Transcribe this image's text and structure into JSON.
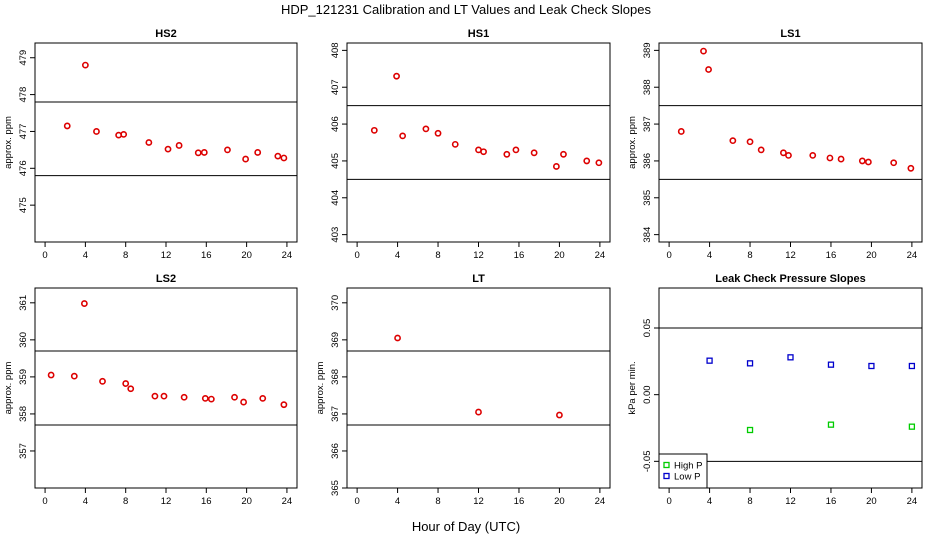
{
  "figure": {
    "title": "HDP_121231  Calibration and LT Values and Leak Check Slopes",
    "xlabel": "Hour of Day (UTC)"
  },
  "chart_data": [
    {
      "type": "scatter",
      "title": "HS2",
      "ylabel": "approx. ppm",
      "xlim": [
        -1,
        25
      ],
      "ylim": [
        474,
        479.4
      ],
      "xticks": [
        0,
        4,
        8,
        12,
        16,
        20,
        24
      ],
      "yticks": [
        475,
        476,
        477,
        478,
        479
      ],
      "hlines": [
        475.8,
        477.8
      ],
      "series": [
        {
          "color": "#dd0000",
          "marker": "circle",
          "points": [
            [
              2.2,
              477.15
            ],
            [
              4.0,
              478.8
            ],
            [
              5.1,
              477.0
            ],
            [
              7.3,
              476.9
            ],
            [
              7.8,
              476.92
            ],
            [
              10.3,
              476.7
            ],
            [
              12.2,
              476.52
            ],
            [
              13.3,
              476.62
            ],
            [
              15.2,
              476.42
            ],
            [
              15.8,
              476.43
            ],
            [
              18.1,
              476.5
            ],
            [
              19.9,
              476.25
            ],
            [
              21.1,
              476.43
            ],
            [
              23.1,
              476.33
            ],
            [
              23.7,
              476.28
            ]
          ]
        }
      ]
    },
    {
      "type": "scatter",
      "title": "HS1",
      "ylabel": "",
      "xlim": [
        -1,
        25
      ],
      "ylim": [
        402.8,
        408.2
      ],
      "xticks": [
        0,
        4,
        8,
        12,
        16,
        20,
        24
      ],
      "yticks": [
        403,
        404,
        405,
        406,
        407,
        408
      ],
      "hlines": [
        404.5,
        406.5
      ],
      "series": [
        {
          "color": "#dd0000",
          "marker": "circle",
          "points": [
            [
              1.7,
              405.83
            ],
            [
              3.9,
              407.3
            ],
            [
              4.5,
              405.68
            ],
            [
              6.8,
              405.87
            ],
            [
              8.0,
              405.75
            ],
            [
              9.7,
              405.45
            ],
            [
              12.0,
              405.3
            ],
            [
              12.5,
              405.25
            ],
            [
              14.8,
              405.18
            ],
            [
              15.7,
              405.3
            ],
            [
              17.5,
              405.22
            ],
            [
              19.7,
              404.85
            ],
            [
              20.4,
              405.18
            ],
            [
              22.7,
              405.0
            ],
            [
              23.9,
              404.95
            ]
          ]
        }
      ]
    },
    {
      "type": "scatter",
      "title": "LS1",
      "ylabel": "approx. ppm",
      "xlim": [
        -1,
        25
      ],
      "ylim": [
        383.8,
        389.2
      ],
      "xticks": [
        0,
        4,
        8,
        12,
        16,
        20,
        24
      ],
      "yticks": [
        384,
        385,
        386,
        387,
        388,
        389
      ],
      "hlines": [
        385.5,
        387.5
      ],
      "series": [
        {
          "color": "#dd0000",
          "marker": "circle",
          "points": [
            [
              1.2,
              386.8
            ],
            [
              3.4,
              388.98
            ],
            [
              3.9,
              388.48
            ],
            [
              6.3,
              386.55
            ],
            [
              8.0,
              386.52
            ],
            [
              9.1,
              386.3
            ],
            [
              11.3,
              386.22
            ],
            [
              11.8,
              386.15
            ],
            [
              14.2,
              386.15
            ],
            [
              15.9,
              386.08
            ],
            [
              17.0,
              386.05
            ],
            [
              19.1,
              386.0
            ],
            [
              19.7,
              385.97
            ],
            [
              22.2,
              385.95
            ],
            [
              23.9,
              385.8
            ]
          ]
        }
      ]
    },
    {
      "type": "scatter",
      "title": "LS2",
      "ylabel": "approx. ppm",
      "xlim": [
        -1,
        25
      ],
      "ylim": [
        356,
        361.4
      ],
      "xticks": [
        0,
        4,
        8,
        12,
        16,
        20,
        24
      ],
      "yticks": [
        357,
        358,
        359,
        360,
        361
      ],
      "hlines": [
        357.7,
        359.7
      ],
      "series": [
        {
          "color": "#dd0000",
          "marker": "circle",
          "points": [
            [
              0.6,
              359.05
            ],
            [
              2.9,
              359.02
            ],
            [
              3.9,
              360.98
            ],
            [
              5.7,
              358.88
            ],
            [
              8.0,
              358.82
            ],
            [
              8.5,
              358.68
            ],
            [
              10.9,
              358.48
            ],
            [
              11.8,
              358.48
            ],
            [
              13.8,
              358.45
            ],
            [
              15.9,
              358.42
            ],
            [
              16.5,
              358.4
            ],
            [
              18.8,
              358.45
            ],
            [
              19.7,
              358.32
            ],
            [
              21.6,
              358.42
            ],
            [
              23.7,
              358.25
            ]
          ]
        }
      ]
    },
    {
      "type": "scatter",
      "title": "LT",
      "ylabel": "approx. ppm",
      "xlim": [
        -1,
        25
      ],
      "ylim": [
        365,
        370.4
      ],
      "xticks": [
        0,
        4,
        8,
        12,
        16,
        20,
        24
      ],
      "yticks": [
        365,
        366,
        367,
        368,
        369,
        370
      ],
      "hlines": [
        366.7,
        368.7
      ],
      "series": [
        {
          "color": "#dd0000",
          "marker": "circle",
          "points": [
            [
              4.0,
              369.05
            ],
            [
              12.0,
              367.05
            ],
            [
              20.0,
              366.97
            ]
          ]
        }
      ]
    },
    {
      "type": "scatter",
      "title": "Leak Check Pressure Slopes",
      "ylabel": "kPa per min.",
      "xlim": [
        -1,
        25
      ],
      "ylim": [
        -0.07,
        0.08
      ],
      "xticks": [
        0,
        4,
        8,
        12,
        16,
        20,
        24
      ],
      "yticks": [
        -0.05,
        0.0,
        0.05
      ],
      "ytick_labels": [
        "-0.05",
        "0.00",
        "0.05"
      ],
      "hlines": [
        -0.05,
        0.05
      ],
      "legend": {
        "position": "bottom-left"
      },
      "series": [
        {
          "name": "High P",
          "color": "#00cc00",
          "marker": "square",
          "points": [
            [
              8.0,
              -0.0265
            ],
            [
              16.0,
              -0.0225
            ],
            [
              24.0,
              -0.024
            ]
          ]
        },
        {
          "name": "Low P",
          "color": "#0000cc",
          "marker": "square",
          "points": [
            [
              4.0,
              0.0255
            ],
            [
              8.0,
              0.0235
            ],
            [
              12.0,
              0.028
            ],
            [
              16.0,
              0.0225
            ],
            [
              20.0,
              0.0215
            ],
            [
              24.0,
              0.0215
            ]
          ]
        }
      ]
    }
  ]
}
